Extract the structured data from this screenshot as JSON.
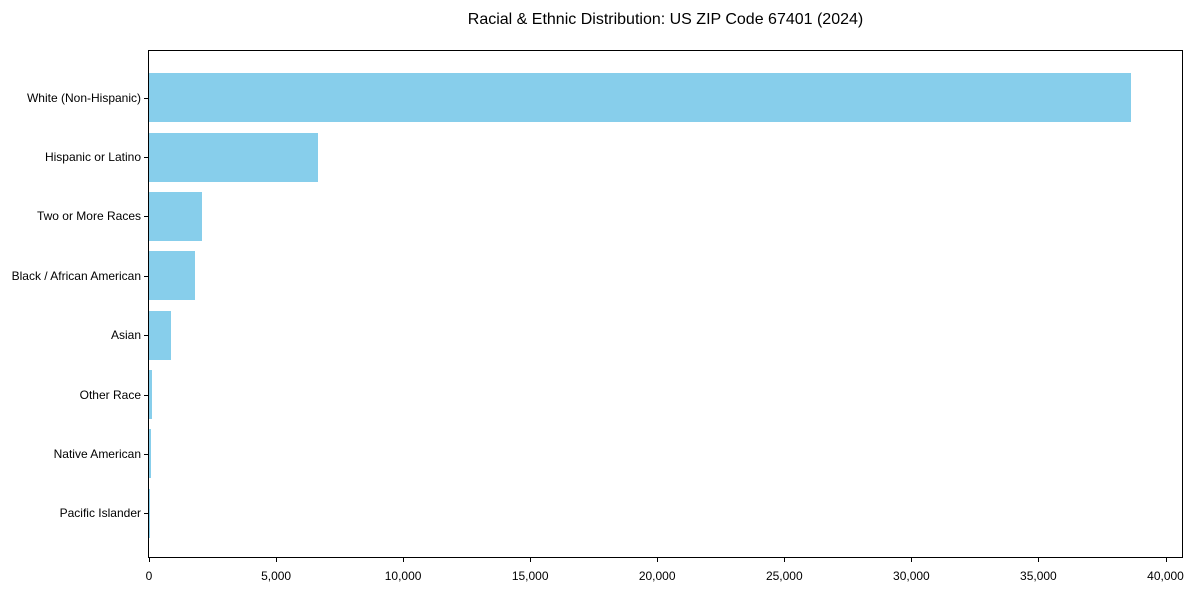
{
  "chart_data": {
    "type": "bar",
    "orientation": "horizontal",
    "title": "Racial & Ethnic Distribution: US ZIP Code 67401 (2024)",
    "categories": [
      "White (Non-Hispanic)",
      "Hispanic or Latino",
      "Two or More Races",
      "Black / African American",
      "Asian",
      "Other Race",
      "Native American",
      "Pacific Islander"
    ],
    "values": [
      38650,
      6650,
      2100,
      1800,
      850,
      100,
      90,
      30
    ],
    "xlabel": "",
    "ylabel": "",
    "xlim": [
      0,
      40650
    ],
    "xticks": [
      0,
      5000,
      10000,
      15000,
      20000,
      25000,
      30000,
      35000,
      40000
    ],
    "xtick_labels": [
      "0",
      "5,000",
      "10,000",
      "15,000",
      "20,000",
      "25,000",
      "30,000",
      "35,000",
      "40,000"
    ],
    "grid": false,
    "legend_position": "none",
    "bar_color": "#87CEEB",
    "spine_color": "#000000",
    "text_color": "#000000"
  }
}
